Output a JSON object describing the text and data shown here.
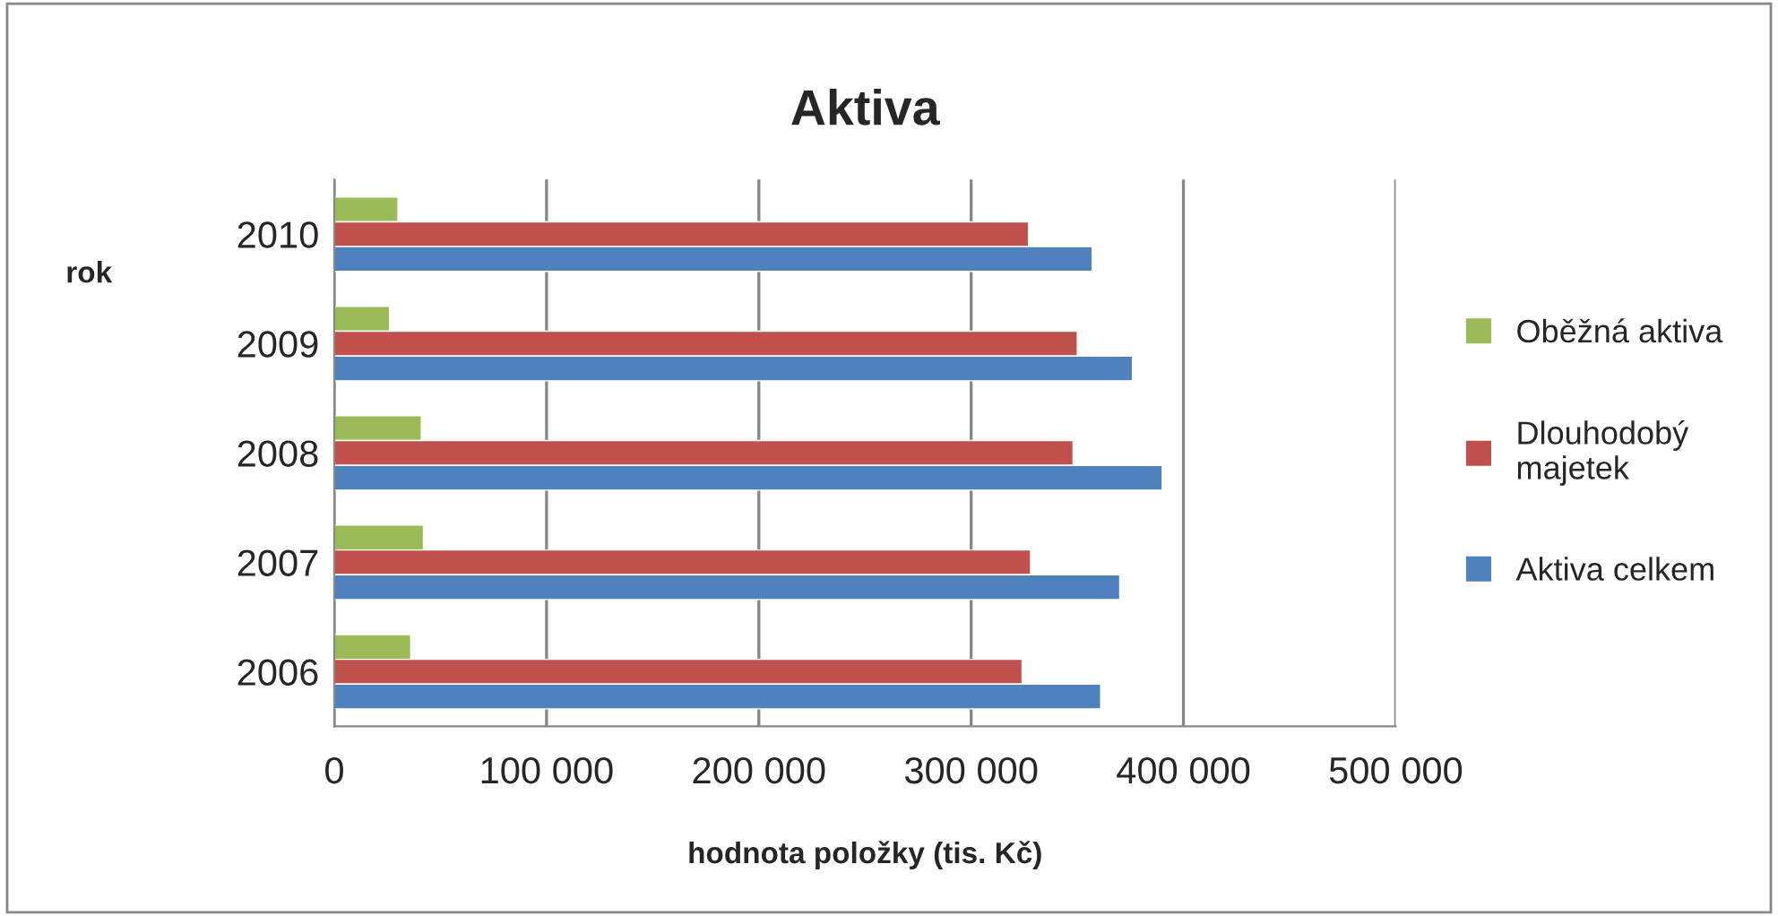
{
  "chart_data": {
    "type": "bar",
    "orientation": "horizontal",
    "title": "Aktiva",
    "xlabel": "hodnota položky (tis. Kč)",
    "ylabel": "rok",
    "categories": [
      "2010",
      "2009",
      "2008",
      "2007",
      "2006"
    ],
    "series": [
      {
        "name": "Oběžná aktiva",
        "color": "#9bbb59",
        "values": [
          30000,
          26000,
          41000,
          42000,
          36000
        ]
      },
      {
        "name": "Dlouhodobý\nmajetek",
        "color": "#c0504d",
        "values": [
          327000,
          350000,
          348000,
          328000,
          324000
        ]
      },
      {
        "name": "Aktiva celkem",
        "color": "#4f81bd",
        "values": [
          357000,
          376000,
          390000,
          370000,
          361000
        ]
      }
    ],
    "xlim": [
      0,
      500000
    ],
    "xticks": [
      0,
      {
        "value": 100000,
        "label": "100 000"
      },
      {
        "value": 200000,
        "label": "200 000"
      },
      {
        "value": 300000,
        "label": "300 000"
      },
      {
        "value": 400000,
        "label": "400 000"
      },
      {
        "value": 500000,
        "label": "500 000"
      }
    ],
    "grid": "x",
    "legend": "right"
  }
}
